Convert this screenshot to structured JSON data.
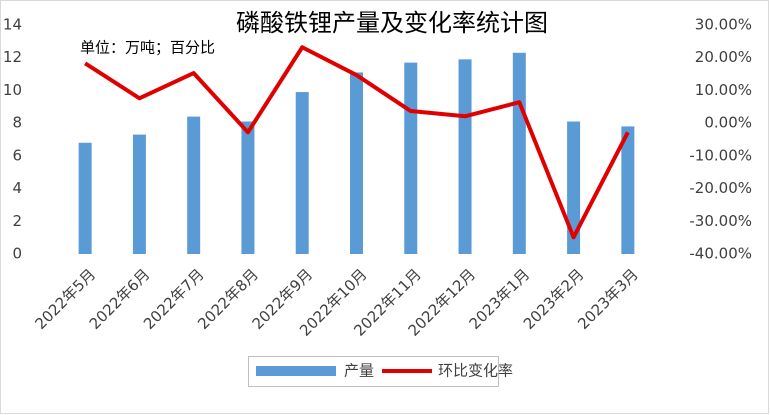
{
  "chart_data": {
    "type": "bar-line",
    "title": "磷酸铁锂产量及变化率统计图",
    "subtitle": "单位：万吨；百分比",
    "categories": [
      "2022年5月",
      "2022年6月",
      "2022年7月",
      "2022年8月",
      "2022年9月",
      "2022年10月",
      "2022年11月",
      "2022年12月",
      "2023年1月",
      "2023年2月",
      "2023年3月"
    ],
    "series": [
      {
        "name": "产量",
        "color": "#5b9bd5",
        "type": "bar",
        "values": [
          6.8,
          7.3,
          8.4,
          8.1,
          9.9,
          11.1,
          11.7,
          11.9,
          12.3,
          8.1,
          7.8
        ]
      },
      {
        "name": "环比变化率",
        "color": "#e00000",
        "type": "line",
        "axis": "y2",
        "values": [
          18.3,
          7.6,
          15.3,
          -2.8,
          23.2,
          14.7,
          3.7,
          2.1,
          6.4,
          -34.9,
          -2.8
        ]
      }
    ],
    "ylim": [
      0,
      14
    ],
    "yticks": [
      0,
      2,
      4,
      6,
      8,
      10,
      12,
      14
    ],
    "y2lim": [
      -40,
      30
    ],
    "y2ticks": [
      {
        "value": 30,
        "label": "30.00%"
      },
      {
        "value": 20,
        "label": "20.00%"
      },
      {
        "value": 10,
        "label": "10.00%"
      },
      {
        "value": 0,
        "label": "0.00%"
      },
      {
        "value": -10,
        "label": "-10.00%"
      },
      {
        "value": -20,
        "label": "-20.00%"
      },
      {
        "value": -30,
        "label": "-30.00%"
      },
      {
        "value": -40,
        "label": "-40.00%"
      }
    ],
    "legend": "bottom"
  }
}
